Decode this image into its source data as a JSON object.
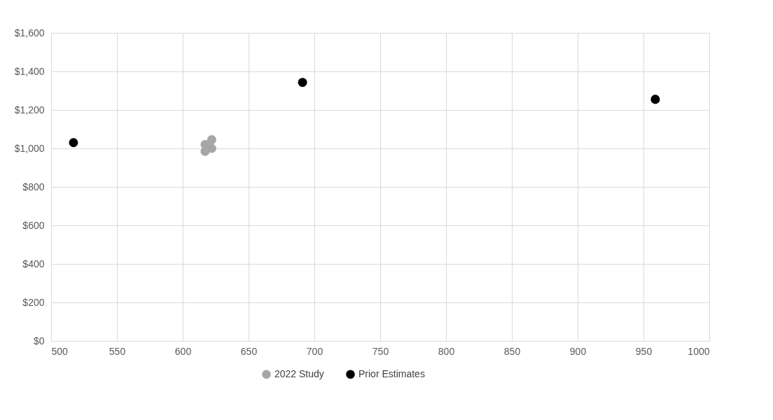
{
  "chart_data": {
    "type": "scatter",
    "xlim": [
      500,
      1000
    ],
    "xticks": [
      500,
      550,
      600,
      650,
      700,
      750,
      800,
      850,
      900,
      950,
      1000
    ],
    "ylim": [
      0,
      1600
    ],
    "yticks": [
      {
        "value": 0,
        "label": "$0"
      },
      {
        "value": 200,
        "label": "$200"
      },
      {
        "value": 400,
        "label": "$400"
      },
      {
        "value": 600,
        "label": "$600"
      },
      {
        "value": 800,
        "label": "$800"
      },
      {
        "value": 1000,
        "label": "$1,000"
      },
      {
        "value": 1200,
        "label": "$1,200"
      },
      {
        "value": 1400,
        "label": "$1,400"
      },
      {
        "value": 1600,
        "label": "$1,600"
      }
    ],
    "grid": true,
    "legend": "bottom",
    "marker": "circle",
    "series": [
      {
        "name": "2022 Study",
        "color": "#a6a6a6",
        "x": [
          617,
          622,
          617,
          622
        ],
        "values": [
          1020,
          1045,
          985,
          1000
        ]
      },
      {
        "name": "Prior Estimates",
        "color": "#000000",
        "x": [
          517,
          691,
          959
        ],
        "values": [
          1030,
          1343,
          1255
        ]
      }
    ]
  }
}
